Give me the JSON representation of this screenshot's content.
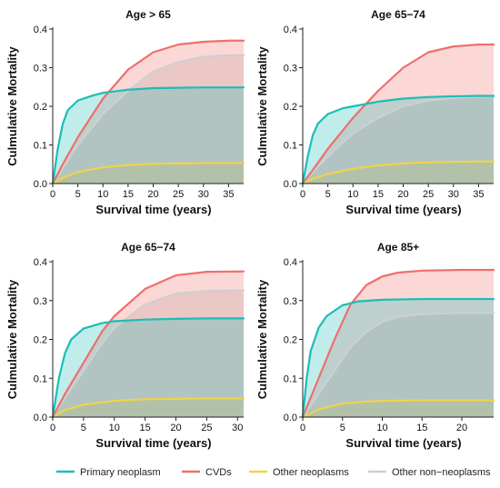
{
  "colors": {
    "primary_neoplasm": "#1cbdb6",
    "cvds": "#ef6f6c",
    "other_neoplasms": "#f0d34a",
    "other_non_neoplasms": "#cfcfcf"
  },
  "legend": {
    "primary_neoplasm": "Primary neoplasm",
    "cvds": "CVDs",
    "other_neoplasms": "Other neoplasms",
    "other_non_neoplasms": "Other non−neoplasms"
  },
  "chart_data": [
    {
      "type": "area",
      "title": "Age > 65",
      "xlabel": "Survival time (years)",
      "ylabel": "Culmulative Mortality",
      "xlim": [
        0,
        38
      ],
      "ylim": [
        0,
        0.4
      ],
      "xticks": [
        0,
        5,
        10,
        15,
        20,
        25,
        30,
        35
      ],
      "yticks": [
        0.0,
        0.1,
        0.2,
        0.3,
        0.4
      ],
      "series": [
        {
          "name": "Other non−neoplasms",
          "key": "other_non_neoplasms",
          "x": [
            0,
            2,
            5,
            10,
            15,
            20,
            25,
            30,
            35,
            38
          ],
          "values": [
            0,
            0.04,
            0.1,
            0.18,
            0.24,
            0.29,
            0.315,
            0.328,
            0.332,
            0.332
          ]
        },
        {
          "name": "Other neoplasms",
          "key": "other_neoplasms",
          "x": [
            0,
            2,
            5,
            10,
            15,
            20,
            25,
            30,
            35,
            38
          ],
          "values": [
            0,
            0.015,
            0.03,
            0.042,
            0.048,
            0.051,
            0.052,
            0.053,
            0.053,
            0.053
          ]
        },
        {
          "name": "CVDs",
          "key": "cvds",
          "x": [
            0,
            2,
            5,
            10,
            15,
            20,
            25,
            30,
            35,
            38
          ],
          "values": [
            0,
            0.05,
            0.12,
            0.22,
            0.295,
            0.34,
            0.36,
            0.367,
            0.37,
            0.37
          ]
        },
        {
          "name": "Primary neoplasm",
          "key": "primary_neoplasm",
          "x": [
            0,
            1,
            2,
            3,
            5,
            8,
            10,
            15,
            20,
            25,
            30,
            35,
            38
          ],
          "values": [
            0,
            0.09,
            0.155,
            0.19,
            0.215,
            0.228,
            0.235,
            0.243,
            0.247,
            0.248,
            0.249,
            0.249,
            0.249
          ]
        }
      ]
    },
    {
      "type": "area",
      "title": "Age 65−74",
      "xlabel": "Survival time (years)",
      "ylabel": "Culmulative Mortality",
      "xlim": [
        0,
        38
      ],
      "ylim": [
        0,
        0.4
      ],
      "xticks": [
        0,
        5,
        10,
        15,
        20,
        25,
        30,
        35
      ],
      "yticks": [
        0.0,
        0.1,
        0.2,
        0.3,
        0.4
      ],
      "series": [
        {
          "name": "Other non−neoplasms",
          "key": "other_non_neoplasms",
          "x": [
            0,
            2,
            5,
            10,
            15,
            20,
            25,
            30,
            35,
            38
          ],
          "values": [
            0,
            0.03,
            0.07,
            0.13,
            0.17,
            0.2,
            0.215,
            0.222,
            0.225,
            0.225
          ]
        },
        {
          "name": "Other neoplasms",
          "key": "other_neoplasms",
          "x": [
            0,
            2,
            5,
            10,
            15,
            20,
            25,
            30,
            35,
            38
          ],
          "values": [
            0,
            0.012,
            0.025,
            0.038,
            0.047,
            0.052,
            0.055,
            0.056,
            0.057,
            0.057
          ]
        },
        {
          "name": "CVDs",
          "key": "cvds",
          "x": [
            0,
            2,
            5,
            10,
            15,
            20,
            25,
            30,
            35,
            38
          ],
          "values": [
            0,
            0.035,
            0.09,
            0.17,
            0.24,
            0.3,
            0.34,
            0.355,
            0.36,
            0.36
          ]
        },
        {
          "name": "Primary neoplasm",
          "key": "primary_neoplasm",
          "x": [
            0,
            1,
            2,
            3,
            5,
            8,
            10,
            15,
            20,
            25,
            30,
            35,
            38
          ],
          "values": [
            0,
            0.07,
            0.125,
            0.155,
            0.18,
            0.195,
            0.2,
            0.212,
            0.22,
            0.224,
            0.226,
            0.227,
            0.227
          ]
        }
      ]
    },
    {
      "type": "area",
      "title": "Age 65−74",
      "xlabel": "Survival time (years)",
      "ylabel": "Culmulative Mortality",
      "xlim": [
        0,
        31
      ],
      "ylim": [
        0,
        0.4
      ],
      "xticks": [
        0,
        5,
        10,
        15,
        20,
        25,
        30
      ],
      "yticks": [
        0.0,
        0.1,
        0.2,
        0.3,
        0.4
      ],
      "series": [
        {
          "name": "Other non−neoplasms",
          "key": "other_non_neoplasms",
          "x": [
            0,
            2,
            5,
            8,
            10,
            15,
            20,
            25,
            31
          ],
          "values": [
            0,
            0.05,
            0.12,
            0.19,
            0.23,
            0.29,
            0.318,
            0.325,
            0.326
          ]
        },
        {
          "name": "Other neoplasms",
          "key": "other_neoplasms",
          "x": [
            0,
            2,
            5,
            10,
            15,
            20,
            25,
            31
          ],
          "values": [
            0,
            0.018,
            0.032,
            0.042,
            0.046,
            0.047,
            0.048,
            0.048
          ]
        },
        {
          "name": "CVDs",
          "key": "cvds",
          "x": [
            0,
            2,
            5,
            8,
            10,
            15,
            20,
            25,
            31
          ],
          "values": [
            0,
            0.06,
            0.14,
            0.22,
            0.26,
            0.33,
            0.365,
            0.374,
            0.375
          ]
        },
        {
          "name": "Primary neoplasm",
          "key": "primary_neoplasm",
          "x": [
            0,
            1,
            2,
            3,
            5,
            8,
            10,
            15,
            20,
            25,
            31
          ],
          "values": [
            0,
            0.1,
            0.165,
            0.2,
            0.228,
            0.242,
            0.247,
            0.251,
            0.253,
            0.254,
            0.254
          ]
        }
      ]
    },
    {
      "type": "area",
      "title": "Age 85+",
      "xlabel": "Survival time (years)",
      "ylabel": "Culmulative Mortality",
      "xlim": [
        0,
        24
      ],
      "ylim": [
        0,
        0.4
      ],
      "xticks": [
        0,
        5,
        10,
        15,
        20
      ],
      "yticks": [
        0.0,
        0.1,
        0.2,
        0.3,
        0.4
      ],
      "series": [
        {
          "name": "Other non−neoplasms",
          "key": "other_non_neoplasms",
          "x": [
            0,
            1,
            2,
            4,
            6,
            8,
            10,
            12,
            15,
            20,
            24
          ],
          "values": [
            0,
            0.03,
            0.06,
            0.12,
            0.18,
            0.22,
            0.245,
            0.258,
            0.265,
            0.268,
            0.268
          ]
        },
        {
          "name": "Other neoplasms",
          "key": "other_neoplasms",
          "x": [
            0,
            2,
            5,
            8,
            10,
            15,
            20,
            24
          ],
          "values": [
            0,
            0.02,
            0.035,
            0.04,
            0.042,
            0.043,
            0.043,
            0.043
          ]
        },
        {
          "name": "CVDs",
          "key": "cvds",
          "x": [
            0,
            1,
            2,
            4,
            6,
            8,
            10,
            12,
            15,
            20,
            24
          ],
          "values": [
            0,
            0.05,
            0.1,
            0.2,
            0.29,
            0.34,
            0.362,
            0.372,
            0.377,
            0.379,
            0.379
          ]
        },
        {
          "name": "Primary neoplasm",
          "key": "primary_neoplasm",
          "x": [
            0,
            0.5,
            1,
            2,
            3,
            5,
            7,
            10,
            15,
            20,
            24
          ],
          "values": [
            0,
            0.1,
            0.17,
            0.23,
            0.26,
            0.288,
            0.298,
            0.302,
            0.304,
            0.304,
            0.304
          ]
        }
      ]
    }
  ]
}
